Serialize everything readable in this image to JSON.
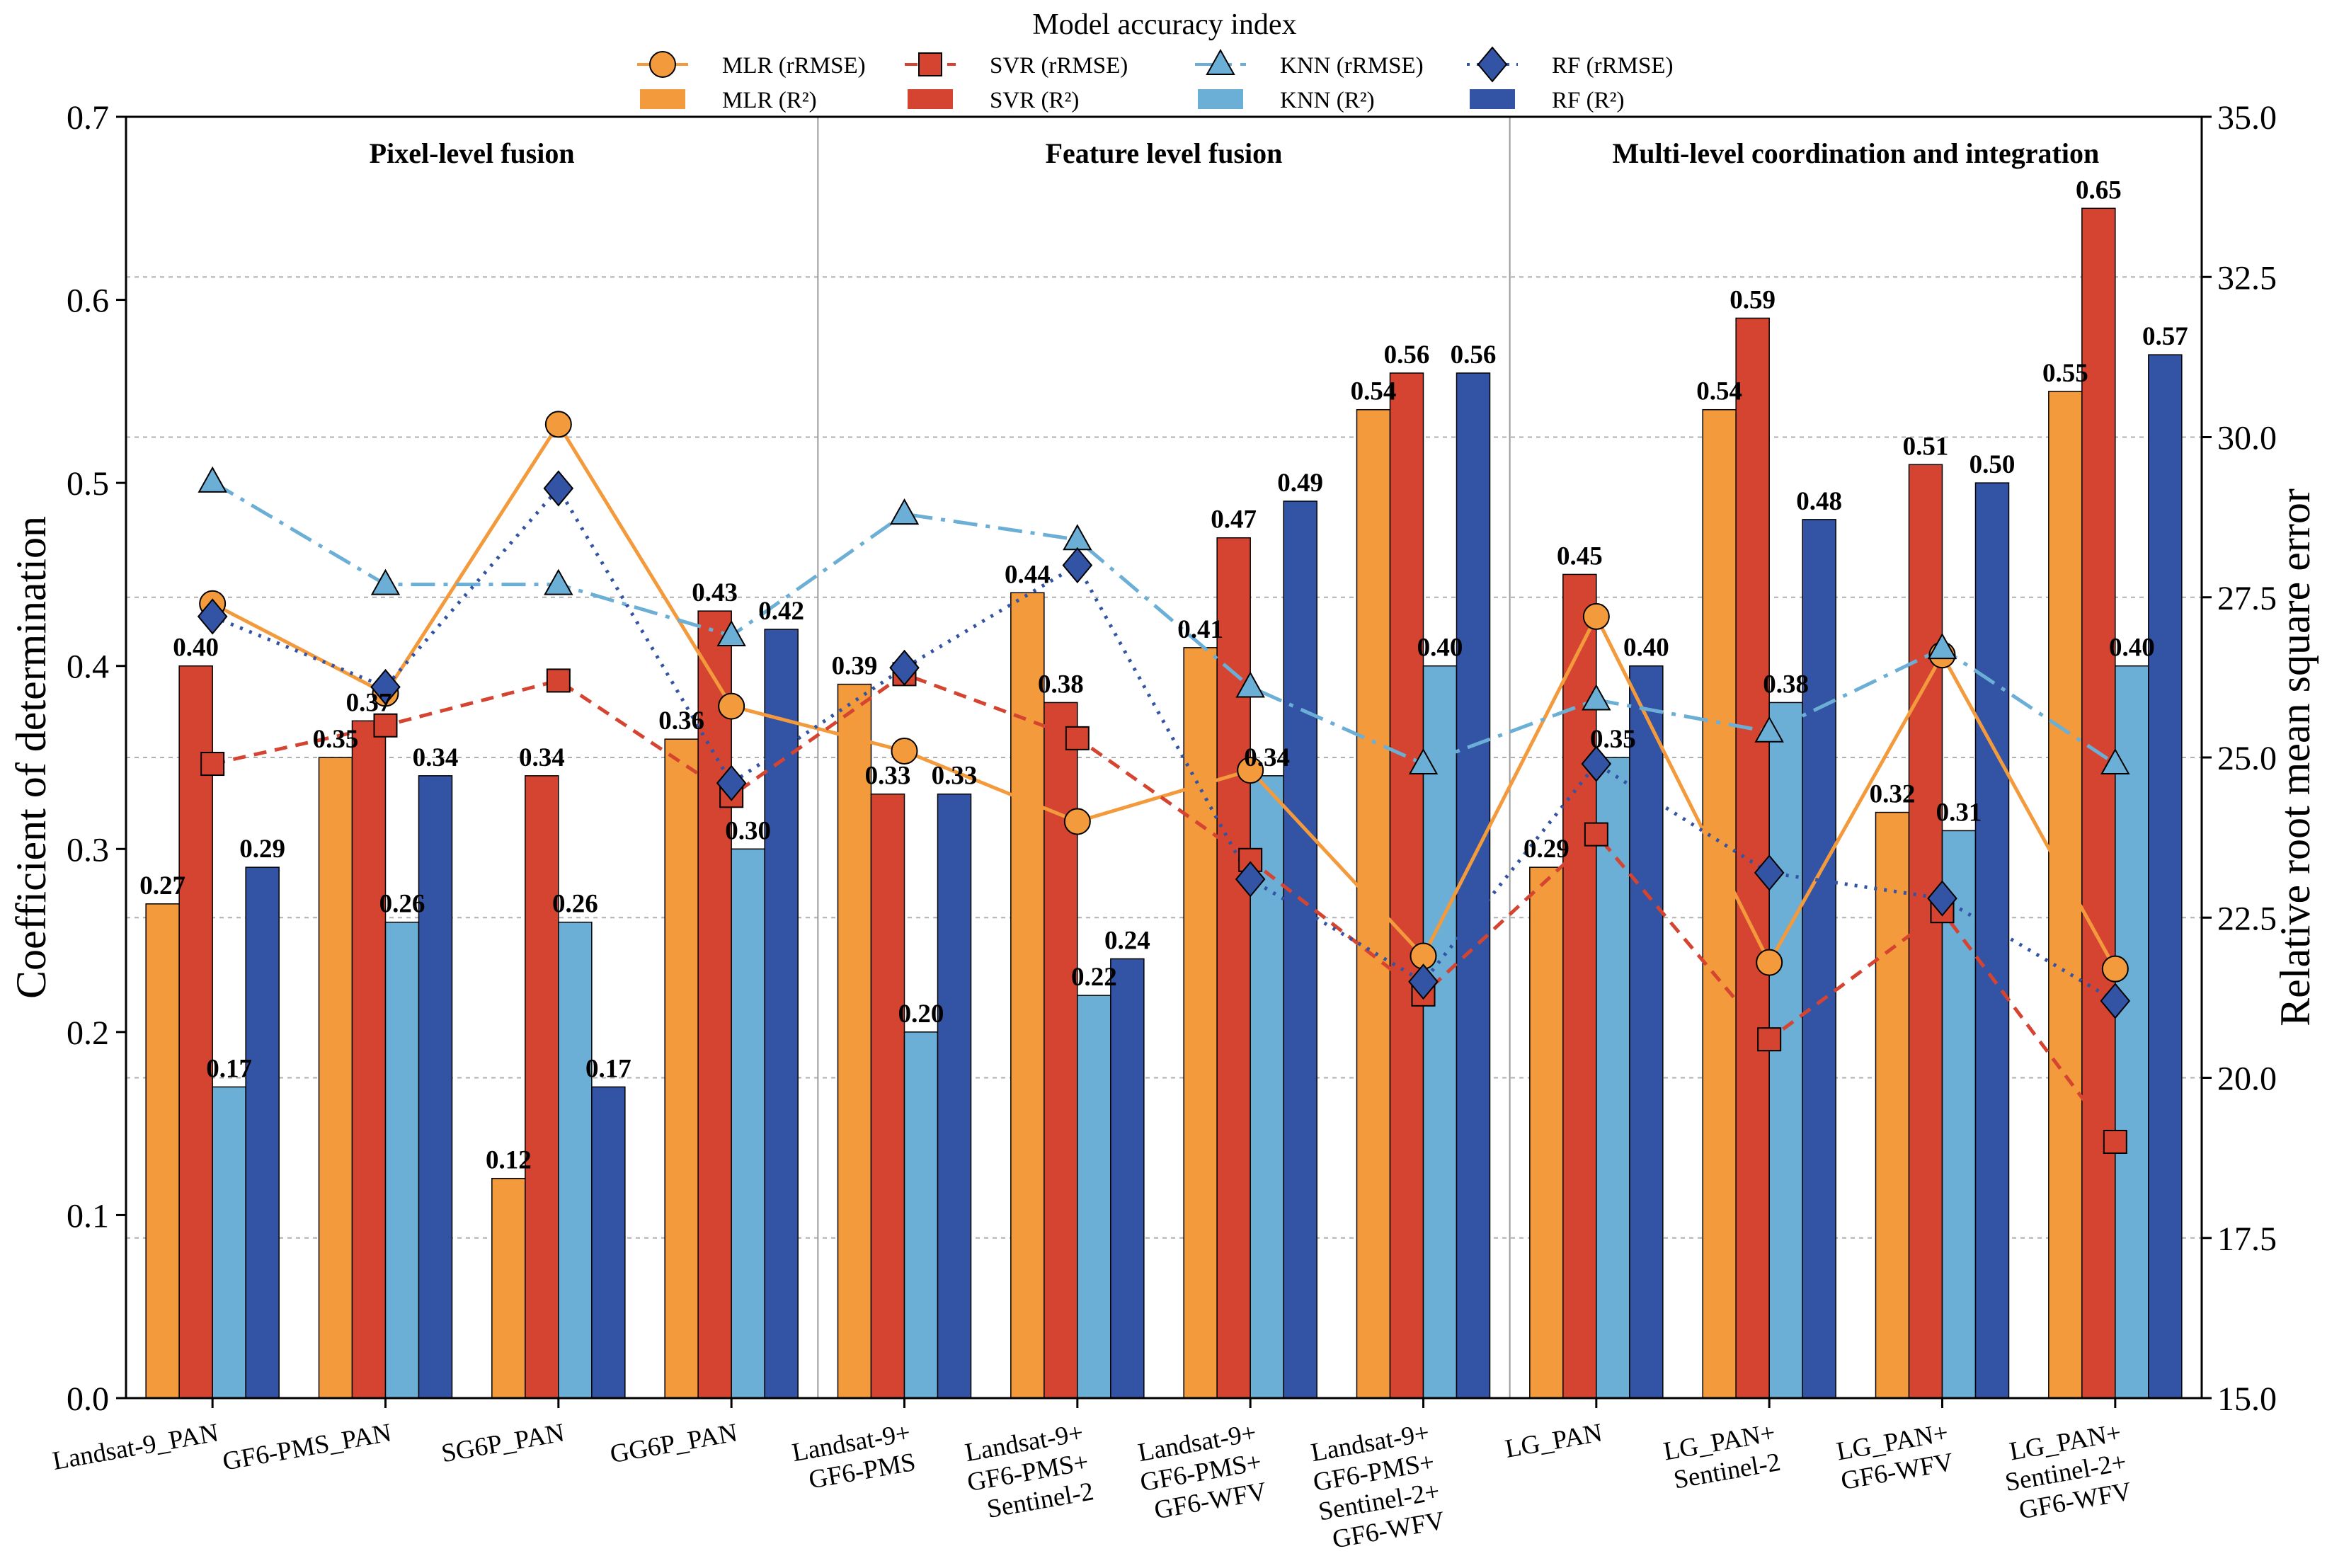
{
  "chart_data": {
    "type": "bar",
    "legend_title": "Model accuracy index",
    "ylabel": "Coefficient of determination",
    "y2label": "Relative root mean square error",
    "ylim": [
      0,
      0.7
    ],
    "y2lim": [
      15,
      35
    ],
    "yticks": [
      "0.0",
      "0.1",
      "0.2",
      "0.3",
      "0.4",
      "0.5",
      "0.6",
      "0.7"
    ],
    "y2ticks": [
      "15.0",
      "17.5",
      "20.0",
      "22.5",
      "25.0",
      "27.5",
      "30.0",
      "32.5",
      "35.0"
    ],
    "groups": [
      "Pixel-level fusion",
      "Feature level fusion",
      "Multi-level coordination and integration"
    ],
    "categories": [
      [
        "Landsat-9_PAN"
      ],
      [
        "GF6-PMS_PAN"
      ],
      [
        "SG6P_PAN"
      ],
      [
        "GG6P_PAN"
      ],
      [
        "Landsat-9+",
        "GF6-PMS"
      ],
      [
        "Landsat-9+",
        "GF6-PMS+",
        "Sentinel-2"
      ],
      [
        "Landsat-9+",
        "GF6-PMS+",
        "GF6-WFV"
      ],
      [
        "Landsat-9+",
        "GF6-PMS+",
        "Sentinel-2+",
        "GF6-WFV"
      ],
      [
        "LG_PAN"
      ],
      [
        "LG_PAN+",
        "Sentinel-2"
      ],
      [
        "LG_PAN+",
        "GF6-WFV"
      ],
      [
        "LG_PAN+",
        "Sentinel-2+",
        "GF6-WFV"
      ]
    ],
    "bar_series": [
      {
        "name": "MLR (R²)",
        "color": "#F39A3C",
        "values": [
          0.27,
          0.35,
          0.12,
          0.36,
          0.39,
          0.44,
          0.41,
          0.54,
          0.29,
          0.54,
          0.32,
          0.55
        ],
        "labels": [
          "0.27",
          "0.35",
          "0.12",
          "0.36",
          "0.39",
          "0.44",
          "0.41",
          "0.54",
          "0.29",
          "0.54",
          "0.32",
          "0.55"
        ]
      },
      {
        "name": "SVR (R²)",
        "color": "#D54430",
        "values": [
          0.4,
          0.37,
          0.34,
          0.43,
          0.33,
          0.38,
          0.47,
          0.56,
          0.45,
          0.59,
          0.51,
          0.65
        ],
        "labels": [
          "0.40",
          "0.37",
          "0.34",
          "0.43",
          "0.33",
          "0.38",
          "0.47",
          "0.56",
          "0.45",
          "0.59",
          "0.51",
          "0.65"
        ]
      },
      {
        "name": "KNN (R²)",
        "color": "#6BAED6",
        "values": [
          0.17,
          0.26,
          0.26,
          0.3,
          0.2,
          0.22,
          0.34,
          0.4,
          0.35,
          0.38,
          0.31,
          0.4
        ],
        "labels": [
          "0.17",
          "0.26",
          "0.26",
          "0.30",
          "0.20",
          "0.22",
          "0.34",
          "0.40",
          "0.35",
          "0.38",
          "0.31",
          "0.40"
        ]
      },
      {
        "name": "RF (R²)",
        "color": "#3353A4",
        "values": [
          0.29,
          0.34,
          0.17,
          0.42,
          0.33,
          0.24,
          0.49,
          0.56,
          0.4,
          0.48,
          0.5,
          0.57
        ],
        "labels": [
          "0.29",
          "0.34",
          "0.17",
          "0.42",
          "0.33",
          "0.24",
          "0.49",
          "0.56",
          "0.40",
          "0.48",
          "0.50",
          "0.57"
        ]
      }
    ],
    "line_series": [
      {
        "name": "MLR (rRMSE)",
        "color": "#F39A3C",
        "marker": "circle",
        "dash": "",
        "values": [
          27.4,
          26.0,
          30.2,
          25.8,
          25.1,
          24.0,
          24.8,
          21.9,
          27.2,
          21.8,
          26.6,
          21.7
        ]
      },
      {
        "name": "SVR (rRMSE)",
        "color": "#D54430",
        "marker": "square",
        "dash": "18 12",
        "values": [
          24.9,
          25.5,
          26.2,
          24.4,
          26.3,
          25.3,
          23.4,
          21.3,
          23.8,
          20.6,
          22.6,
          19.0
        ]
      },
      {
        "name": "KNN (rRMSE)",
        "color": "#6BAED6",
        "marker": "triangle",
        "dash": "34 12 6 12",
        "values": [
          29.3,
          27.7,
          27.7,
          26.9,
          28.8,
          28.4,
          26.1,
          24.9,
          25.9,
          25.4,
          26.7,
          24.9
        ]
      },
      {
        "name": "RF (rRMSE)",
        "color": "#3353A4",
        "marker": "diamond",
        "dash": "4 10",
        "values": [
          27.2,
          26.1,
          29.2,
          24.6,
          26.4,
          28.0,
          23.1,
          21.5,
          24.9,
          23.2,
          22.8,
          21.2
        ]
      }
    ]
  }
}
